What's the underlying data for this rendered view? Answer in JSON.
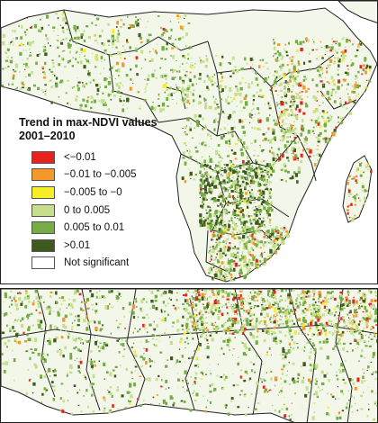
{
  "legend": {
    "title_line1": "Trend in max-NDVI values",
    "title_line2": "2001–2010",
    "items": [
      {
        "label": "<−0.01",
        "color": "#e8231f"
      },
      {
        "label": "−0.01 to −0.005",
        "color": "#f4982a"
      },
      {
        "label": "−0.005 to −0",
        "color": "#f7ee2a"
      },
      {
        "label": "0 to 0.005",
        "color": "#c6df8c"
      },
      {
        "label": "0.005 to 0.01",
        "color": "#74ad45"
      },
      {
        "label": ">0.01",
        "color": "#3f5a1c"
      },
      {
        "label": "Not significant",
        "color": "#ffffff"
      }
    ]
  },
  "colors": {
    "land": "#f3f7ea",
    "sea": "#ffffff",
    "border": "#222222"
  }
}
